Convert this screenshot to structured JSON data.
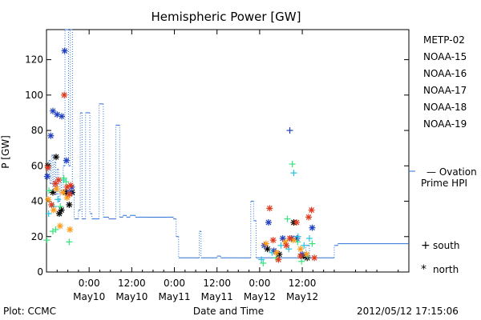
{
  "chart_data": {
    "type": "scatter",
    "title": "Hemispheric Power [GW]",
    "xlabel": "Date and Time",
    "ylabel": "P [GW]",
    "xlim": [
      -12,
      90
    ],
    "ylim": [
      0,
      137
    ],
    "yticks": [
      0,
      20,
      40,
      60,
      80,
      100,
      120
    ],
    "xticks": [
      {
        "h": 0,
        "line1": "0:00",
        "line2": "May10"
      },
      {
        "h": 12,
        "line1": "12:00",
        "line2": "May10"
      },
      {
        "h": 24,
        "line1": "0:00",
        "line2": "May11"
      },
      {
        "h": 36,
        "line1": "12:00",
        "line2": "May11"
      },
      {
        "h": 48,
        "line1": "0:00",
        "line2": "May12"
      },
      {
        "h": 60,
        "line1": "12:00",
        "line2": "May12"
      }
    ],
    "legend": [
      {
        "name": "METP-02",
        "color": "#000000"
      },
      {
        "name": "NOAA-15",
        "color": "#1f3fbf"
      },
      {
        "name": "NOAA-16",
        "color": "#22c4e0"
      },
      {
        "name": "NOAA-17",
        "color": "#35e37a"
      },
      {
        "name": "NOAA-18",
        "color": "#ff9a1a"
      },
      {
        "name": "NOAA-19",
        "color": "#e03a1f"
      }
    ],
    "ovation_label_line1": "— Ovation",
    "ovation_label_line2": "Prime HPI",
    "ovation_color": "#2b6fd6",
    "marker_legend": [
      {
        "symbol": "+",
        "label": "south"
      },
      {
        "symbol": "*",
        "label": "north"
      }
    ],
    "ovation_step": [
      [
        -12,
        55
      ],
      [
        -11.4,
        63
      ],
      [
        -11,
        50
      ],
      [
        -10.6,
        66
      ],
      [
        -10.2,
        47
      ],
      [
        -9.8,
        62
      ],
      [
        -9.4,
        44
      ],
      [
        -9,
        58
      ],
      [
        -8.6,
        40
      ],
      [
        -8.2,
        52
      ],
      [
        -7.8,
        45
      ],
      [
        -7.3,
        60
      ],
      [
        -6.8,
        137
      ],
      [
        -6.2,
        137
      ],
      [
        -5.8,
        60
      ],
      [
        -5.3,
        137
      ],
      [
        -4.7,
        45
      ],
      [
        -4.2,
        30
      ],
      [
        -3,
        35
      ],
      [
        -2.5,
        90
      ],
      [
        -2,
        30
      ],
      [
        -1,
        90
      ],
      [
        0.2,
        33
      ],
      [
        0.8,
        30
      ],
      [
        2.8,
        95
      ],
      [
        4,
        31
      ],
      [
        5.5,
        30
      ],
      [
        7.5,
        83
      ],
      [
        8.6,
        31
      ],
      [
        9.5,
        32
      ],
      [
        10.5,
        31
      ],
      [
        11.5,
        32
      ],
      [
        13,
        31
      ],
      [
        16,
        31
      ],
      [
        22,
        31
      ],
      [
        23.7,
        30
      ],
      [
        24.5,
        20
      ],
      [
        25.2,
        8
      ],
      [
        30,
        8
      ],
      [
        31,
        23
      ],
      [
        31.5,
        8
      ],
      [
        36,
        9
      ],
      [
        37,
        8
      ],
      [
        42,
        8
      ],
      [
        45,
        8
      ],
      [
        45.5,
        40
      ],
      [
        46.3,
        29
      ],
      [
        47,
        8
      ],
      [
        60,
        8
      ],
      [
        61,
        15
      ],
      [
        62,
        8
      ],
      [
        68,
        8
      ],
      [
        69,
        15
      ],
      [
        70,
        16
      ]
    ],
    "series": [
      {
        "name": "METP-02",
        "points": [
          [
            -11.6,
            60,
            "n"
          ],
          [
            -10.2,
            45,
            "n"
          ],
          [
            -9.3,
            65,
            "n"
          ],
          [
            -8.4,
            33,
            "n"
          ],
          [
            -7.8,
            35,
            "n"
          ],
          [
            -6.5,
            45,
            "n"
          ],
          [
            -5.6,
            38,
            "n"
          ],
          [
            -4.8,
            45,
            "n"
          ],
          [
            50.2,
            13,
            "n"
          ],
          [
            53.5,
            10,
            "n"
          ],
          [
            57.6,
            28,
            "n"
          ],
          [
            60.4,
            9,
            "n"
          ],
          [
            61.4,
            8,
            "n"
          ]
        ]
      },
      {
        "name": "NOAA-15",
        "points": [
          [
            -11.8,
            54,
            "n"
          ],
          [
            -10.8,
            77,
            "n"
          ],
          [
            -10.2,
            91,
            "n"
          ],
          [
            -9,
            89,
            "n"
          ],
          [
            -7.7,
            88,
            "n"
          ],
          [
            -6.9,
            125,
            "n"
          ],
          [
            -6.4,
            63,
            "n"
          ],
          [
            -5.4,
            45,
            "n"
          ],
          [
            -4.9,
            48,
            "n"
          ],
          [
            49.3,
            15,
            "n"
          ],
          [
            50.5,
            28,
            "n"
          ],
          [
            52,
            12,
            "n"
          ],
          [
            54.5,
            19,
            "n"
          ],
          [
            56.5,
            80,
            "p"
          ],
          [
            57,
            19,
            "n"
          ],
          [
            58.5,
            19,
            "n"
          ],
          [
            60,
            10,
            "n"
          ],
          [
            62.8,
            25,
            "n"
          ]
        ]
      },
      {
        "name": "NOAA-16",
        "points": [
          [
            -11.4,
            33,
            "p"
          ],
          [
            -10,
            37,
            "p"
          ],
          [
            -8.8,
            41,
            "p"
          ],
          [
            -7.2,
            52,
            "p"
          ],
          [
            48.5,
            7,
            "p"
          ],
          [
            51.5,
            11,
            "p"
          ],
          [
            54,
            15,
            "p"
          ],
          [
            56.2,
            13,
            "p"
          ],
          [
            57.6,
            56,
            "p"
          ],
          [
            58.8,
            20,
            "p"
          ],
          [
            60.5,
            15,
            "p"
          ],
          [
            61.5,
            9,
            "p"
          ],
          [
            62,
            19,
            "p"
          ]
        ]
      },
      {
        "name": "NOAA-17",
        "points": [
          [
            -11.9,
            18,
            "p"
          ],
          [
            -11.3,
            46,
            "p"
          ],
          [
            -10.2,
            23,
            "p"
          ],
          [
            -9.4,
            24,
            "p"
          ],
          [
            -8.1,
            37,
            "p"
          ],
          [
            -7.1,
            53,
            "p"
          ],
          [
            -6.5,
            51,
            "p"
          ],
          [
            -5.6,
            17,
            "p"
          ],
          [
            49,
            5,
            "p"
          ],
          [
            52.6,
            8,
            "p"
          ],
          [
            55.8,
            30,
            "p"
          ],
          [
            57.2,
            61,
            "p"
          ],
          [
            58.7,
            17,
            "p"
          ],
          [
            59.8,
            6,
            "p"
          ],
          [
            62.8,
            16,
            "p"
          ]
        ]
      },
      {
        "name": "NOAA-18",
        "points": [
          [
            -11.5,
            41,
            "n"
          ],
          [
            -10,
            35,
            "n"
          ],
          [
            -9.2,
            47,
            "n"
          ],
          [
            -8.2,
            26,
            "n"
          ],
          [
            -7.4,
            45,
            "n"
          ],
          [
            -6.2,
            42,
            "n"
          ],
          [
            -5.4,
            24,
            "n"
          ],
          [
            49.8,
            16,
            "n"
          ],
          [
            52.7,
            11,
            "n"
          ],
          [
            55.2,
            17,
            "n"
          ],
          [
            57.5,
            18,
            "n"
          ],
          [
            59.5,
            13,
            "n"
          ],
          [
            61.2,
            10,
            "n"
          ]
        ]
      },
      {
        "name": "NOAA-19",
        "points": [
          [
            -11.6,
            59,
            "n"
          ],
          [
            -10.6,
            38,
            "n"
          ],
          [
            -9.5,
            50,
            "n"
          ],
          [
            -8.6,
            52,
            "n"
          ],
          [
            -7,
            100,
            "n"
          ],
          [
            -6.2,
            48,
            "n"
          ],
          [
            -5.5,
            44,
            "n"
          ],
          [
            -5.2,
            49,
            "n"
          ],
          [
            50.8,
            36,
            "n"
          ],
          [
            51.8,
            18,
            "n"
          ],
          [
            53.3,
            7,
            "n"
          ],
          [
            55.5,
            15,
            "n"
          ],
          [
            56.5,
            19,
            "n"
          ],
          [
            58.4,
            28,
            "n"
          ],
          [
            59.5,
            9,
            "n"
          ],
          [
            61.8,
            31,
            "n"
          ],
          [
            62.6,
            35,
            "n"
          ],
          [
            63.4,
            8,
            "n"
          ]
        ]
      }
    ]
  },
  "footer": {
    "left": "Plot: CCMC",
    "timestamp": "2012/05/12 17:15:06"
  }
}
